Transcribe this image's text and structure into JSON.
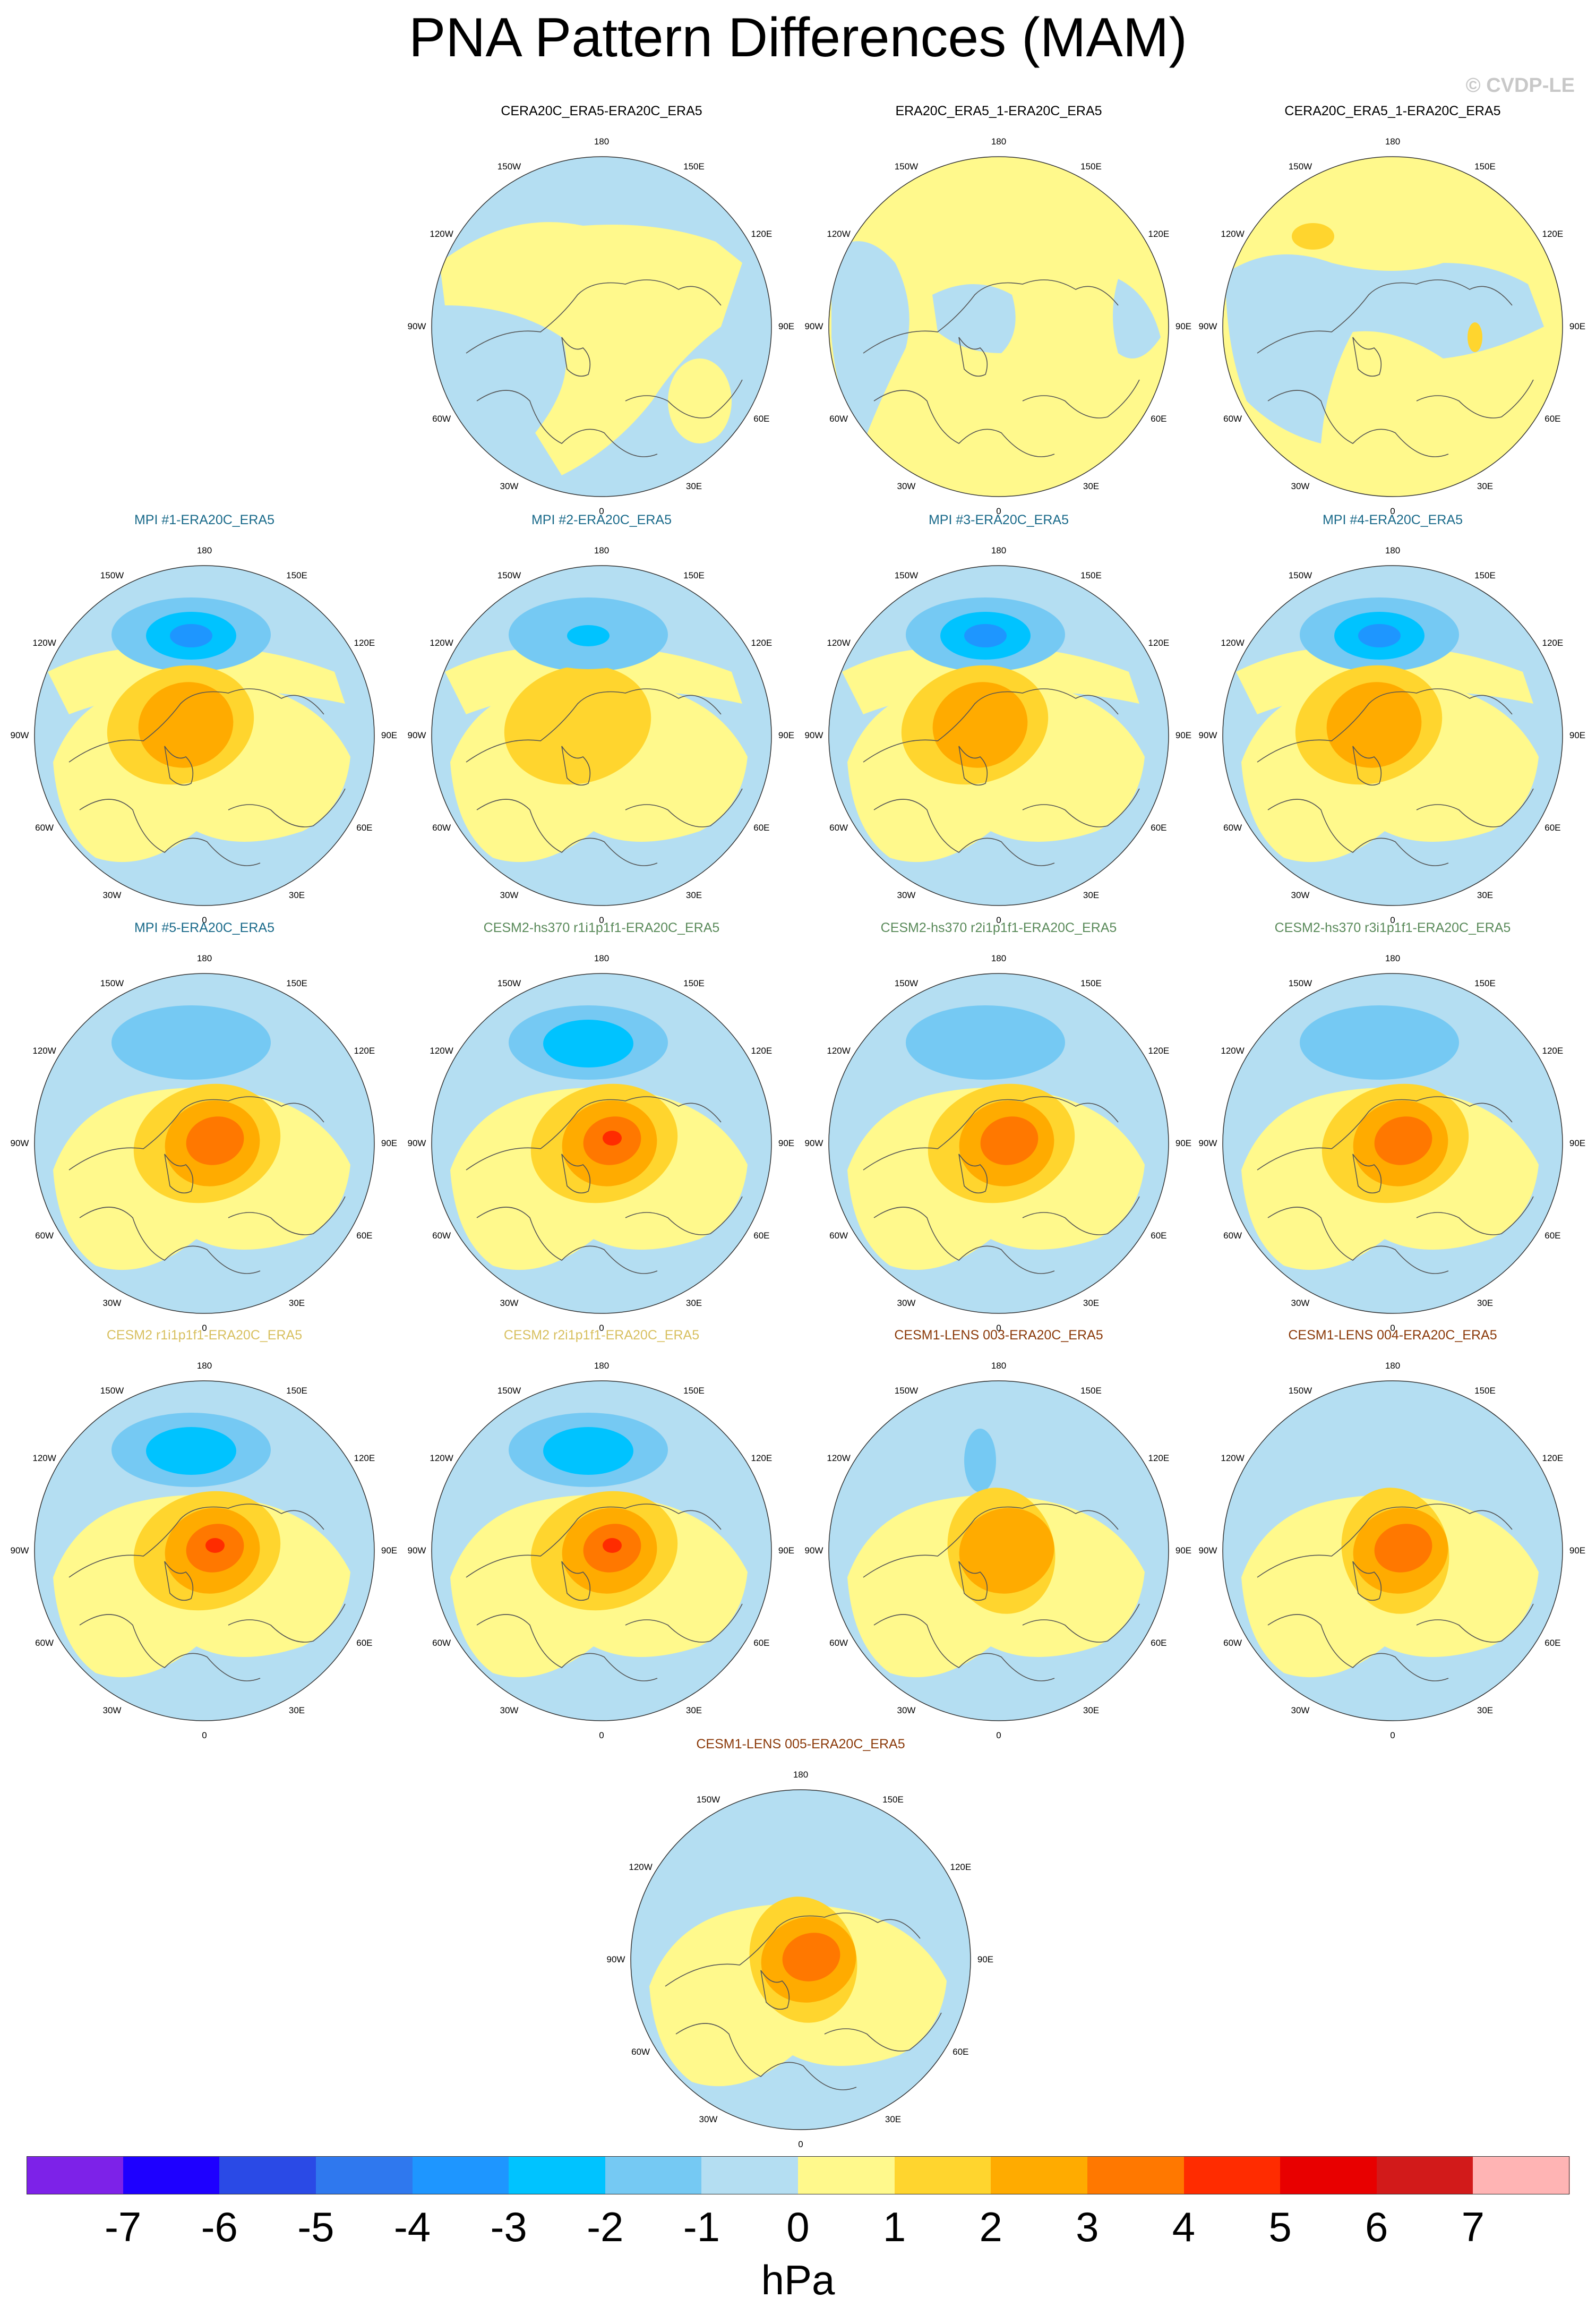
{
  "title": "PNA Pattern Differences (MAM)",
  "copyright": "© CVDP-LE",
  "colors": {
    "title_black": "#000000",
    "mpi_title": "#1a6a8a",
    "cesm2_hs370_title": "#5a8a5a",
    "cesm2_title": "#d8c060",
    "cesm1_title": "#8b3a0a",
    "coast": "#555555"
  },
  "lon_labels": [
    "180",
    "150E",
    "120E",
    "90E",
    "60E",
    "30E",
    "0",
    "30W",
    "60W",
    "90W",
    "120W",
    "150W"
  ],
  "panels": [
    {
      "title": "CERA20C_ERA5-ERA20C_ERA5",
      "title_color": "#000000",
      "pattern": "neutral_a"
    },
    {
      "title": "ERA20C_ERA5_1-ERA20C_ERA5",
      "title_color": "#000000",
      "pattern": "neutral_b"
    },
    {
      "title": "CERA20C_ERA5_1-ERA20C_ERA5",
      "title_color": "#000000",
      "pattern": "neutral_c"
    },
    {
      "title": "MPI #1-ERA20C_ERA5",
      "title_color": "#1a6a8a",
      "pattern": "mpi"
    },
    {
      "title": "MPI #2-ERA20C_ERA5",
      "title_color": "#1a6a8a",
      "pattern": "mpi_weak"
    },
    {
      "title": "MPI #3-ERA20C_ERA5",
      "title_color": "#1a6a8a",
      "pattern": "mpi"
    },
    {
      "title": "MPI #4-ERA20C_ERA5",
      "title_color": "#1a6a8a",
      "pattern": "mpi"
    },
    {
      "title": "MPI #5-ERA20C_ERA5",
      "title_color": "#1a6a8a",
      "pattern": "dipole"
    },
    {
      "title": "CESM2-hs370 r1i1p1f1-ERA20C_ERA5",
      "title_color": "#5a8a5a",
      "pattern": "dipole_strong"
    },
    {
      "title": "CESM2-hs370 r2i1p1f1-ERA20C_ERA5",
      "title_color": "#5a8a5a",
      "pattern": "dipole"
    },
    {
      "title": "CESM2-hs370 r3i1p1f1-ERA20C_ERA5",
      "title_color": "#5a8a5a",
      "pattern": "dipole"
    },
    {
      "title": "CESM2 r1i1p1f1-ERA20C_ERA5",
      "title_color": "#d8c060",
      "pattern": "dipole_strong"
    },
    {
      "title": "CESM2 r2i1p1f1-ERA20C_ERA5",
      "title_color": "#d8c060",
      "pattern": "dipole_strong"
    },
    {
      "title": "CESM1-LENS 003-ERA20C_ERA5",
      "title_color": "#8b3a0a",
      "pattern": "center_weak"
    },
    {
      "title": "CESM1-LENS 004-ERA20C_ERA5",
      "title_color": "#8b3a0a",
      "pattern": "center"
    },
    {
      "title": "CESM1-LENS 005-ERA20C_ERA5",
      "title_color": "#8b3a0a",
      "pattern": "center"
    }
  ],
  "colorbar": {
    "colors": [
      "#7d22e8",
      "#1e00ff",
      "#2a4ae6",
      "#2f78ee",
      "#1e96ff",
      "#00c3ff",
      "#75c9f3",
      "#b4def2",
      "#fff98c",
      "#ffd52e",
      "#ffab00",
      "#ff7800",
      "#ff2c00",
      "#e80000",
      "#d21a1a",
      "#ffb4b4"
    ],
    "ticks": [
      "-7",
      "-6",
      "-5",
      "-4",
      "-3",
      "-2",
      "-1",
      "0",
      "1",
      "2",
      "3",
      "4",
      "5",
      "6",
      "7"
    ],
    "units": "hPa"
  }
}
